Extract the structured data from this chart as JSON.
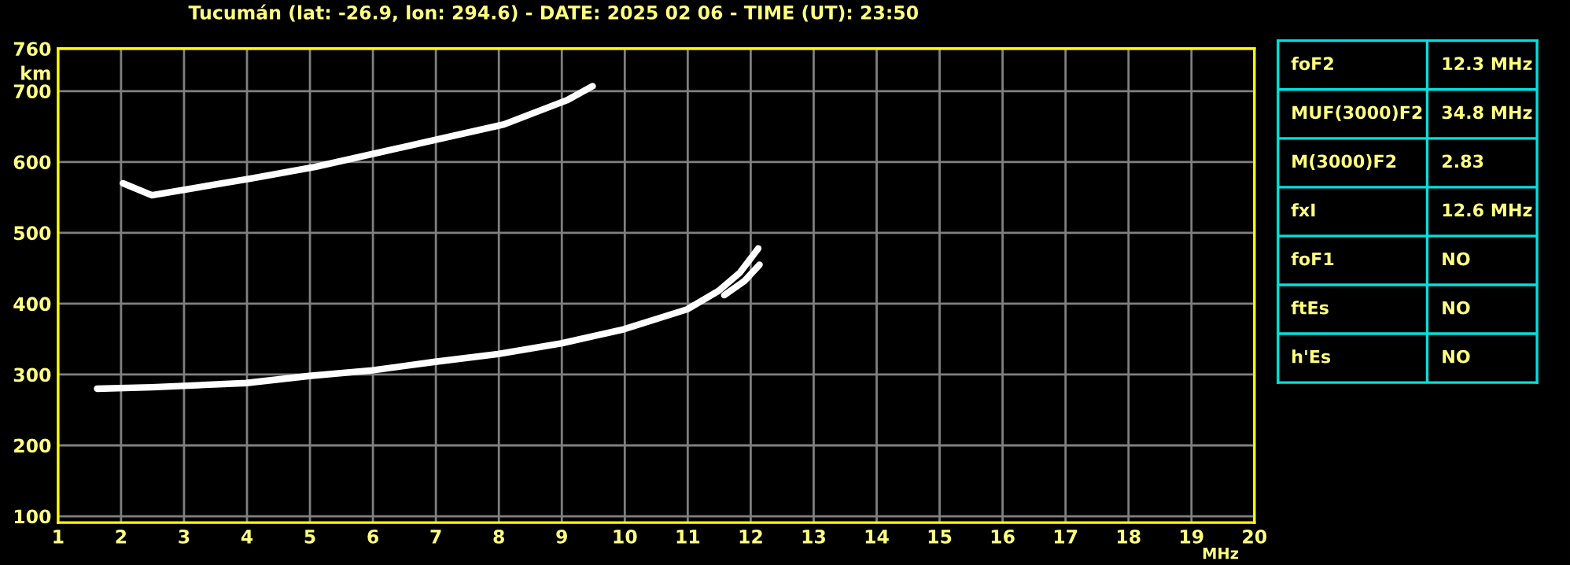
{
  "chart_data": [
    {
      "type": "line",
      "title": "Tucumán (lat: -26.9, lon: 294.6) - DATE: 2025 02 06 - TIME (UT): 23:50",
      "xlabel": "MHz",
      "ylabel": "km",
      "series": [
        {
          "color": "#ffffff",
          "x": [
            1.62,
            2.49,
            3.99,
            4.99,
            5.99,
            6.99,
            7.99,
            8.99,
            9.99,
            10.99,
            11.49,
            11.83,
            12.12
          ],
          "values": [
            280,
            282,
            288,
            298,
            306,
            318,
            329,
            344,
            364,
            392,
            418,
            444,
            478
          ]
        },
        {
          "color": "#ffffff",
          "x": [
            11.58,
            11.9,
            12.14
          ],
          "values": [
            412,
            432,
            455
          ]
        },
        {
          "color": "#ffffff",
          "x": [
            2.03,
            2.49,
            4.08,
            5.08,
            6.08,
            7.08,
            8.08,
            9.08,
            9.49
          ],
          "values": [
            570,
            553,
            577,
            593,
            613,
            633,
            653,
            687,
            707
          ]
        }
      ],
      "xlim": [
        1,
        20
      ],
      "xticks": [
        1,
        2,
        3,
        4,
        5,
        6,
        7,
        8,
        9,
        10,
        11,
        12,
        13,
        14,
        15,
        16,
        17,
        18,
        19,
        20
      ],
      "ylim": [
        91,
        760
      ],
      "yticks": [
        100,
        200,
        300,
        400,
        500,
        600,
        700,
        760
      ],
      "grid": true,
      "marker": "none",
      "line_style": "solid"
    },
    {
      "type": "other",
      "annotations": [
        "foF2",
        "12.3 MHz",
        "MUF(3000)F2",
        "34.8 MHz",
        "M(3000)F2",
        "2.83",
        "fxI",
        "12.6 MHz",
        "foF1",
        "NO",
        "ftEs",
        "NO",
        "h'Es",
        "NO"
      ]
    }
  ]
}
